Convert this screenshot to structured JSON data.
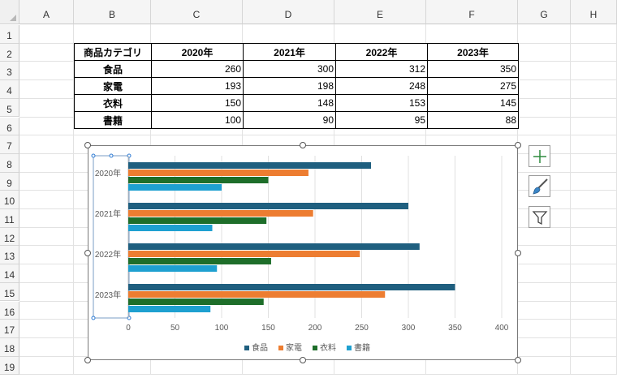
{
  "columns": [
    "A",
    "B",
    "C",
    "D",
    "E",
    "F",
    "G",
    "H"
  ],
  "rows": [
    "1",
    "2",
    "3",
    "4",
    "5",
    "6",
    "7",
    "8",
    "9",
    "10",
    "11",
    "12",
    "13",
    "14",
    "15",
    "16",
    "17",
    "18",
    "19"
  ],
  "table": {
    "headers": [
      "商品カテゴリ",
      "2020年",
      "2021年",
      "2022年",
      "2023年"
    ],
    "rows": [
      {
        "label": "食品",
        "values": [
          "260",
          "300",
          "312",
          "350"
        ]
      },
      {
        "label": "家電",
        "values": [
          "193",
          "198",
          "248",
          "275"
        ]
      },
      {
        "label": "衣料",
        "values": [
          "150",
          "148",
          "153",
          "145"
        ]
      },
      {
        "label": "書籍",
        "values": [
          "100",
          "90",
          "95",
          "88"
        ]
      }
    ]
  },
  "chart_data": {
    "type": "bar",
    "orientation": "horizontal",
    "categories": [
      "2020年",
      "2021年",
      "2022年",
      "2023年"
    ],
    "series": [
      {
        "name": "食品",
        "color": "#1f5f7f",
        "values": [
          260,
          300,
          312,
          350
        ]
      },
      {
        "name": "家電",
        "color": "#ed7d31",
        "values": [
          193,
          198,
          248,
          275
        ]
      },
      {
        "name": "衣料",
        "color": "#1e6e2a",
        "values": [
          150,
          148,
          153,
          145
        ]
      },
      {
        "name": "書籍",
        "color": "#1ea0d0",
        "values": [
          100,
          90,
          95,
          88
        ]
      }
    ],
    "xlim": [
      0,
      400
    ],
    "xticks": [
      "0",
      "50",
      "100",
      "150",
      "200",
      "250",
      "300",
      "350",
      "400"
    ],
    "legend_position": "bottom",
    "grid": true
  },
  "side_buttons": [
    {
      "name": "chart-elements-button",
      "icon": "plus-icon"
    },
    {
      "name": "chart-styles-button",
      "icon": "brush-icon"
    },
    {
      "name": "chart-filters-button",
      "icon": "filter-icon"
    }
  ]
}
